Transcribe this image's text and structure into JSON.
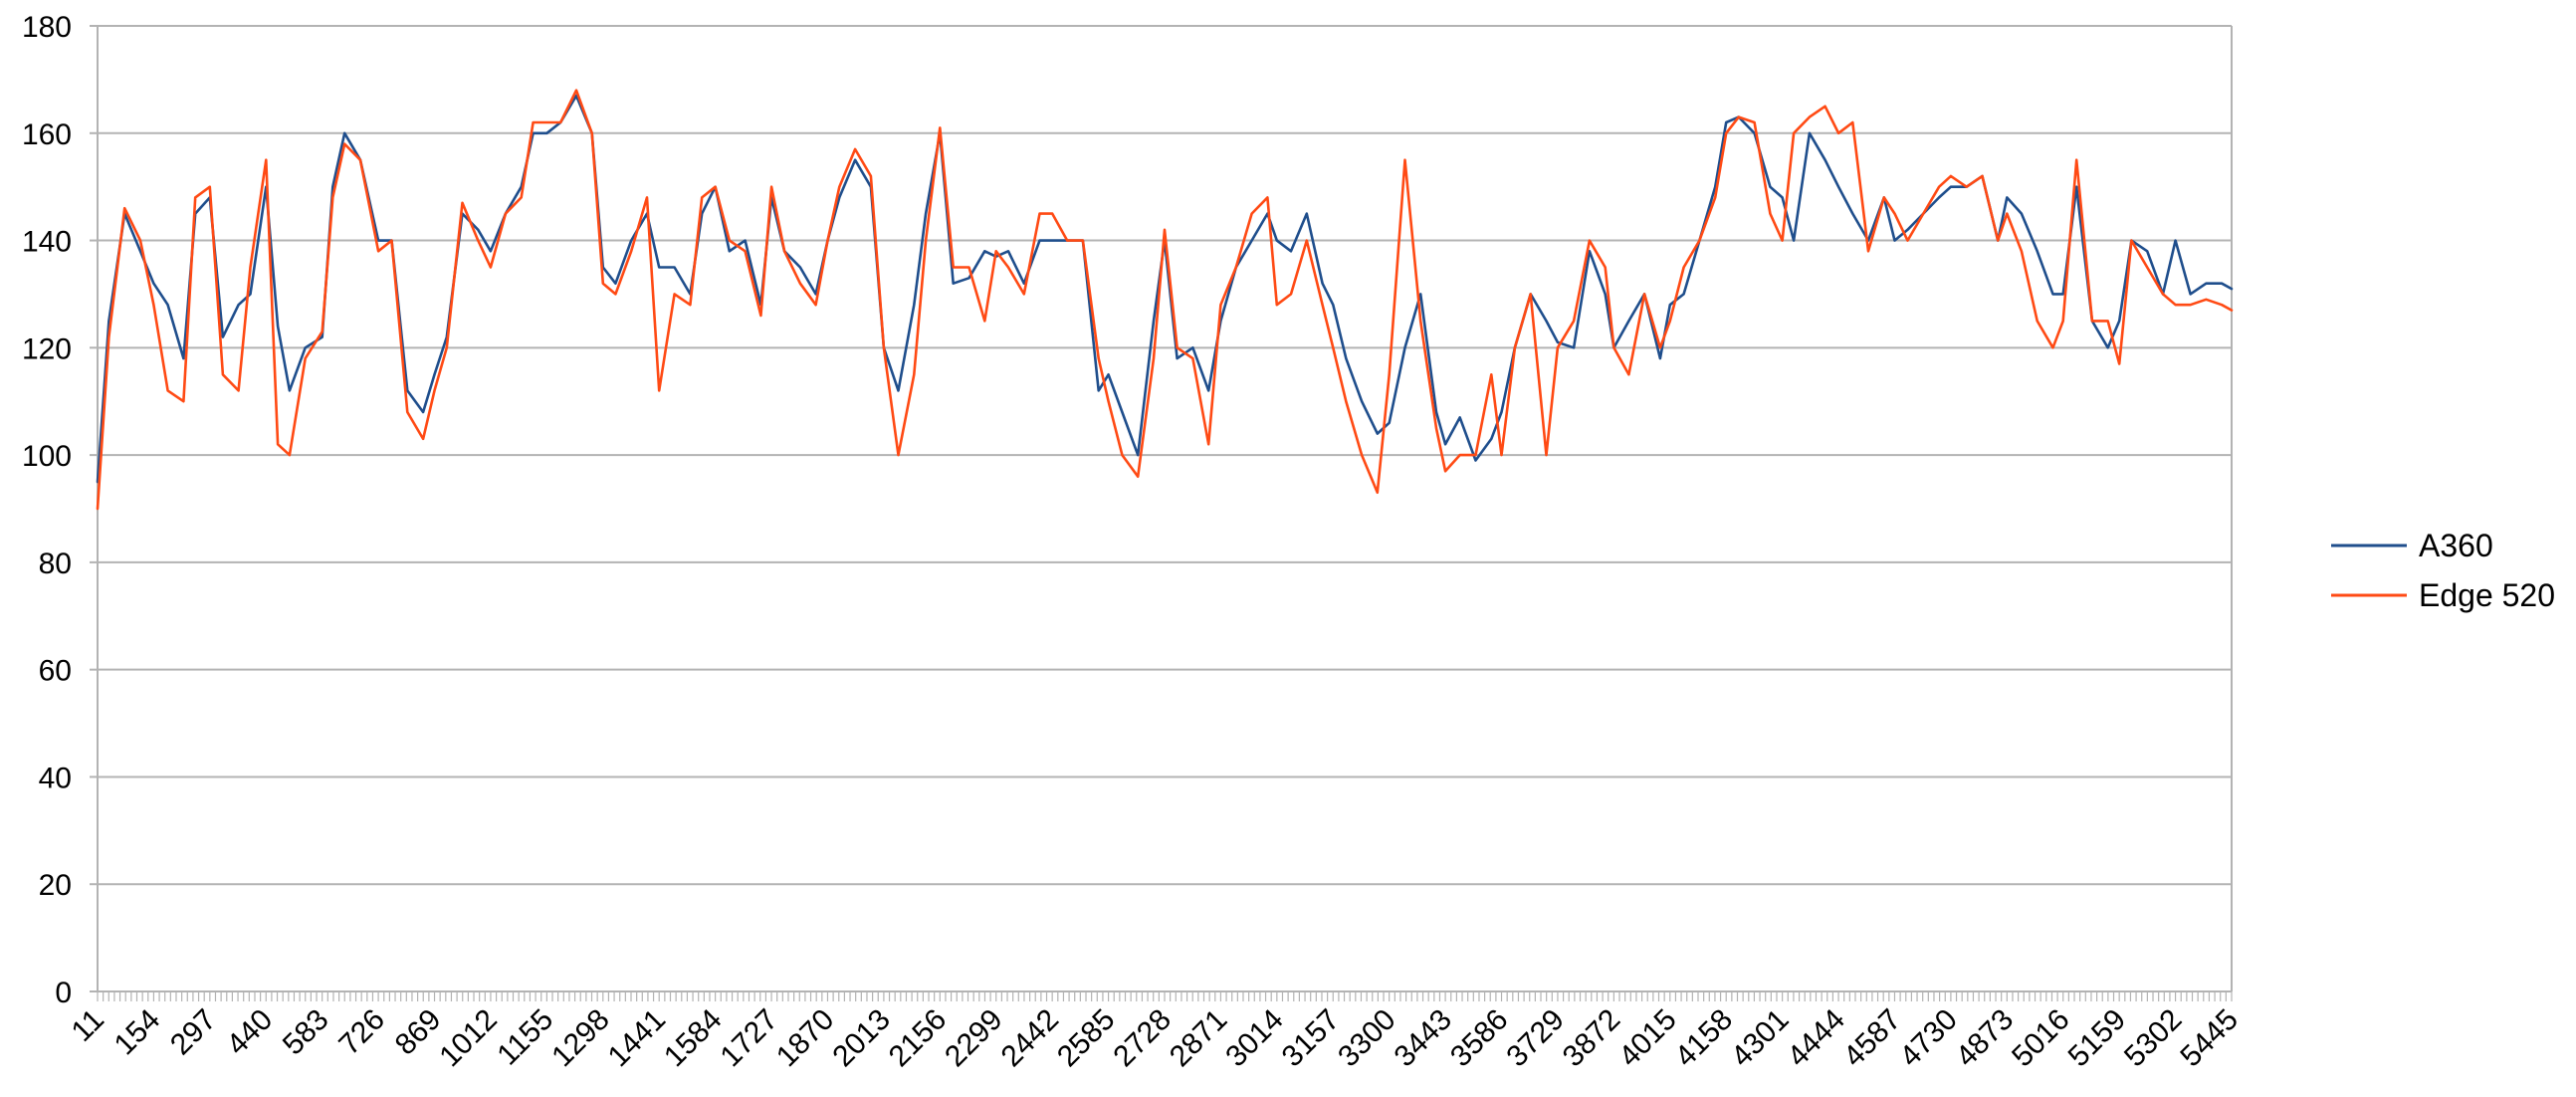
{
  "chart_data": {
    "type": "line",
    "title": "",
    "xlabel": "",
    "ylabel": "",
    "ylim": [
      0,
      180
    ],
    "yticks": [
      0,
      20,
      40,
      60,
      80,
      100,
      120,
      140,
      160,
      180
    ],
    "xlim": [
      11,
      5445
    ],
    "xtick_labels": [
      "11",
      "154",
      "297",
      "440",
      "583",
      "726",
      "869",
      "1012",
      "1155",
      "1298",
      "1441",
      "1584",
      "1727",
      "1870",
      "2013",
      "2156",
      "2299",
      "2442",
      "2585",
      "2728",
      "2871",
      "3014",
      "3157",
      "3300",
      "3443",
      "3586",
      "3729",
      "3872",
      "4015",
      "4158",
      "4301",
      "4444",
      "4587",
      "4730",
      "4873",
      "5016",
      "5159",
      "5302",
      "5445"
    ],
    "grid": "horizontal",
    "legend_position": "right",
    "series": [
      {
        "name": "A360",
        "color": "#1f4e8c",
        "x": [
          11,
          40,
          80,
          120,
          154,
          190,
          230,
          260,
          297,
          330,
          370,
          400,
          440,
          470,
          500,
          540,
          583,
          610,
          640,
          680,
          726,
          760,
          800,
          840,
          869,
          900,
          940,
          980,
          1012,
          1050,
          1090,
          1120,
          1155,
          1190,
          1230,
          1270,
          1298,
          1330,
          1370,
          1410,
          1441,
          1480,
          1520,
          1550,
          1584,
          1620,
          1660,
          1700,
          1727,
          1760,
          1800,
          1840,
          1870,
          1900,
          1940,
          1980,
          2013,
          2050,
          2090,
          2120,
          2156,
          2190,
          2230,
          2270,
          2299,
          2330,
          2370,
          2410,
          2442,
          2480,
          2520,
          2560,
          2585,
          2620,
          2660,
          2700,
          2728,
          2760,
          2800,
          2840,
          2871,
          2910,
          2950,
          2990,
          3014,
          3050,
          3090,
          3130,
          3157,
          3190,
          3230,
          3270,
          3300,
          3340,
          3380,
          3420,
          3443,
          3480,
          3520,
          3560,
          3586,
          3620,
          3660,
          3700,
          3729,
          3770,
          3810,
          3850,
          3872,
          3910,
          3950,
          3990,
          4015,
          4050,
          4090,
          4130,
          4158,
          4190,
          4230,
          4270,
          4301,
          4330,
          4370,
          4410,
          4444,
          4480,
          4520,
          4560,
          4587,
          4620,
          4660,
          4700,
          4730,
          4770,
          4810,
          4850,
          4873,
          4910,
          4950,
          4990,
          5016,
          5050,
          5090,
          5130,
          5159,
          5190,
          5230,
          5270,
          5302,
          5340,
          5380,
          5420,
          5445
        ],
        "values": [
          95,
          125,
          145,
          138,
          132,
          128,
          118,
          145,
          148,
          122,
          128,
          130,
          150,
          124,
          112,
          120,
          122,
          150,
          160,
          155,
          140,
          140,
          112,
          108,
          115,
          122,
          145,
          142,
          138,
          145,
          150,
          160,
          160,
          162,
          167,
          160,
          135,
          132,
          140,
          145,
          135,
          135,
          130,
          145,
          150,
          138,
          140,
          128,
          148,
          138,
          135,
          130,
          140,
          148,
          155,
          150,
          120,
          112,
          128,
          145,
          160,
          132,
          133,
          138,
          137,
          138,
          132,
          140,
          140,
          140,
          140,
          112,
          115,
          108,
          100,
          125,
          140,
          118,
          120,
          112,
          125,
          135,
          140,
          145,
          140,
          138,
          145,
          132,
          128,
          118,
          110,
          104,
          106,
          120,
          130,
          108,
          102,
          107,
          99,
          103,
          108,
          120,
          130,
          125,
          121,
          120,
          138,
          130,
          120,
          125,
          130,
          118,
          128,
          130,
          140,
          150,
          162,
          163,
          160,
          150,
          148,
          140,
          160,
          155,
          150,
          145,
          140,
          148,
          140,
          142,
          145,
          148,
          150,
          150,
          152,
          140,
          148,
          145,
          138,
          130,
          130,
          150,
          125,
          120,
          125,
          140,
          138,
          130,
          140,
          130,
          132,
          132,
          131
        ]
      },
      {
        "name": "Edge 520",
        "color": "#ff4a14",
        "x": [
          11,
          40,
          80,
          120,
          154,
          190,
          230,
          260,
          297,
          330,
          370,
          400,
          440,
          470,
          500,
          540,
          583,
          610,
          640,
          680,
          726,
          760,
          800,
          840,
          869,
          900,
          940,
          980,
          1012,
          1050,
          1090,
          1120,
          1155,
          1190,
          1230,
          1270,
          1298,
          1330,
          1370,
          1410,
          1441,
          1480,
          1520,
          1550,
          1584,
          1620,
          1660,
          1700,
          1727,
          1760,
          1800,
          1840,
          1870,
          1900,
          1940,
          1980,
          2013,
          2050,
          2090,
          2120,
          2156,
          2190,
          2230,
          2270,
          2299,
          2330,
          2370,
          2410,
          2442,
          2480,
          2520,
          2560,
          2585,
          2620,
          2660,
          2700,
          2728,
          2760,
          2800,
          2840,
          2871,
          2910,
          2950,
          2990,
          3014,
          3050,
          3090,
          3130,
          3157,
          3190,
          3230,
          3270,
          3300,
          3340,
          3380,
          3420,
          3443,
          3480,
          3520,
          3560,
          3586,
          3620,
          3660,
          3700,
          3729,
          3770,
          3810,
          3850,
          3872,
          3910,
          3950,
          3990,
          4015,
          4050,
          4090,
          4130,
          4158,
          4190,
          4230,
          4270,
          4301,
          4330,
          4370,
          4410,
          4444,
          4480,
          4520,
          4560,
          4587,
          4620,
          4660,
          4700,
          4730,
          4770,
          4810,
          4850,
          4873,
          4910,
          4950,
          4990,
          5016,
          5050,
          5090,
          5130,
          5159,
          5190,
          5230,
          5270,
          5302,
          5340,
          5380,
          5420,
          5445
        ],
        "values": [
          90,
          122,
          146,
          140,
          128,
          112,
          110,
          148,
          150,
          115,
          112,
          135,
          155,
          102,
          100,
          118,
          123,
          148,
          158,
          155,
          138,
          140,
          108,
          103,
          112,
          120,
          147,
          140,
          135,
          145,
          148,
          162,
          162,
          162,
          168,
          160,
          132,
          130,
          138,
          148,
          112,
          130,
          128,
          148,
          150,
          140,
          138,
          126,
          150,
          138,
          132,
          128,
          140,
          150,
          157,
          152,
          120,
          100,
          115,
          140,
          161,
          135,
          135,
          125,
          138,
          135,
          130,
          145,
          145,
          140,
          140,
          118,
          110,
          100,
          96,
          118,
          142,
          120,
          118,
          102,
          128,
          135,
          145,
          148,
          128,
          130,
          140,
          128,
          120,
          110,
          100,
          93,
          115,
          155,
          125,
          105,
          97,
          100,
          100,
          115,
          100,
          120,
          130,
          100,
          120,
          125,
          140,
          135,
          120,
          115,
          130,
          120,
          125,
          135,
          140,
          148,
          160,
          163,
          162,
          145,
          140,
          160,
          163,
          165,
          160,
          162,
          138,
          148,
          145,
          140,
          145,
          150,
          152,
          150,
          152,
          140,
          145,
          138,
          125,
          120,
          125,
          155,
          125,
          125,
          117,
          140,
          135,
          130,
          128,
          128,
          129,
          128,
          127
        ]
      }
    ]
  }
}
